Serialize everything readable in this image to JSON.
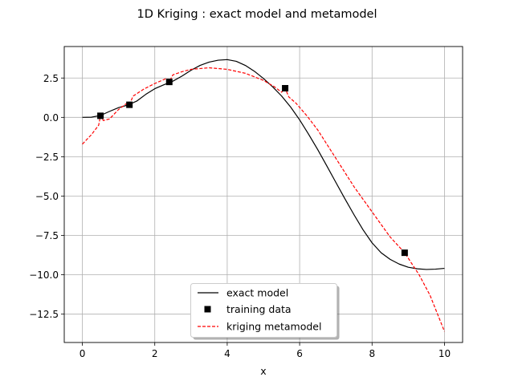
{
  "chart_data": {
    "type": "line",
    "title": "1D Kriging : exact model and metamodel",
    "xlabel": "x",
    "ylabel": "",
    "xlim": [
      -0.5,
      10.5
    ],
    "ylim": [
      -14.3,
      4.5
    ],
    "xticks": [
      0,
      2,
      4,
      6,
      8,
      10
    ],
    "xtick_labels": [
      "0",
      "2",
      "4",
      "6",
      "8",
      "10"
    ],
    "yticks": [
      2.5,
      0.0,
      -2.5,
      -5.0,
      -7.5,
      -10.0,
      -12.5
    ],
    "ytick_labels": [
      "2.5",
      "0.0",
      "−2.5",
      "−5.0",
      "−7.5",
      "−10.0",
      "−12.5"
    ],
    "grid": true,
    "legend_position": "lower-center",
    "series": [
      {
        "name": "exact model",
        "kind": "line",
        "color": "#000000",
        "style": "solid",
        "x": [
          0,
          0.25,
          0.5,
          0.75,
          1.0,
          1.25,
          1.5,
          1.75,
          2.0,
          2.25,
          2.5,
          2.75,
          3.0,
          3.25,
          3.5,
          3.75,
          4.0,
          4.25,
          4.5,
          4.75,
          5.0,
          5.25,
          5.5,
          5.75,
          6.0,
          6.25,
          6.5,
          6.75,
          7.0,
          7.25,
          7.5,
          7.75,
          8.0,
          8.25,
          8.5,
          8.75,
          9.0,
          9.25,
          9.5,
          9.75,
          10.0
        ],
        "y": [
          0.0,
          0.01,
          0.12,
          0.38,
          0.62,
          0.78,
          1.03,
          1.46,
          1.82,
          2.07,
          2.3,
          2.62,
          2.99,
          3.3,
          3.51,
          3.63,
          3.67,
          3.56,
          3.3,
          2.93,
          2.47,
          1.95,
          1.36,
          0.66,
          -0.16,
          -1.08,
          -2.05,
          -3.08,
          -4.13,
          -5.17,
          -6.18,
          -7.14,
          -7.97,
          -8.6,
          -9.02,
          -9.32,
          -9.52,
          -9.62,
          -9.66,
          -9.64,
          -9.59
        ]
      },
      {
        "name": "training data",
        "kind": "scatter",
        "color": "#000000",
        "marker": "square",
        "x": [
          0.5,
          1.3,
          2.4,
          5.6,
          8.9
        ],
        "y": [
          0.1,
          0.8,
          2.25,
          1.85,
          -8.6
        ]
      },
      {
        "name": "kriging metamodel",
        "kind": "line",
        "color": "#ff0000",
        "style": "dashed",
        "x": [
          0,
          0.25,
          0.45,
          0.5,
          0.58,
          0.75,
          1.0,
          1.2,
          1.3,
          1.4,
          1.7,
          2.0,
          2.3,
          2.4,
          2.5,
          2.75,
          3.0,
          3.5,
          4.0,
          4.5,
          5.0,
          5.3,
          5.5,
          5.6,
          5.7,
          5.9,
          6.2,
          6.5,
          7.0,
          7.5,
          8.0,
          8.5,
          8.9,
          9.3,
          9.6,
          10.0
        ],
        "y": [
          -1.7,
          -1.1,
          -0.5,
          0.1,
          -0.2,
          -0.1,
          0.5,
          0.85,
          0.8,
          1.35,
          1.8,
          2.15,
          2.45,
          2.25,
          2.7,
          2.9,
          3.05,
          3.15,
          3.05,
          2.8,
          2.35,
          1.95,
          1.6,
          1.85,
          1.3,
          0.9,
          0.1,
          -0.8,
          -2.6,
          -4.4,
          -6.0,
          -7.6,
          -8.6,
          -10.0,
          -11.3,
          -13.6
        ]
      }
    ]
  }
}
